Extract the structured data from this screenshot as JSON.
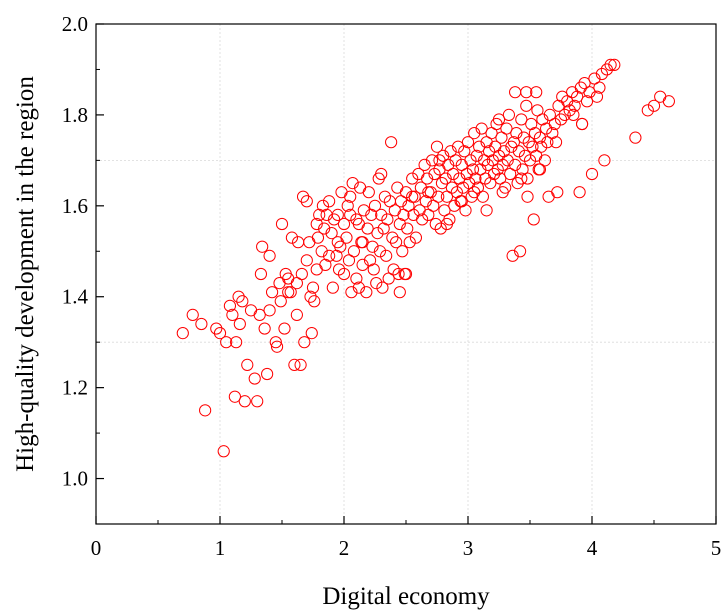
{
  "chart_data": {
    "type": "scatter",
    "title": "",
    "xlabel": "Digital economy",
    "ylabel": "High-quality development in the region",
    "xlim": [
      0,
      5
    ],
    "ylim": [
      0.9,
      2.0
    ],
    "xticks": [
      "0",
      "1",
      "2",
      "3",
      "4",
      "5"
    ],
    "yticks": [
      "1.0",
      "1.2",
      "1.4",
      "1.6",
      "1.8",
      "2.0"
    ],
    "grid": "dashed, light gray",
    "marker": "hollow circle",
    "color": "#ff0000",
    "series": [
      {
        "points": [
          [
            0.7,
            1.32
          ],
          [
            0.78,
            1.36
          ],
          [
            0.85,
            1.34
          ],
          [
            0.88,
            1.15
          ],
          [
            0.97,
            1.33
          ],
          [
            1.0,
            1.32
          ],
          [
            1.03,
            1.06
          ],
          [
            1.05,
            1.3
          ],
          [
            1.08,
            1.38
          ],
          [
            1.1,
            1.36
          ],
          [
            1.12,
            1.18
          ],
          [
            1.13,
            1.3
          ],
          [
            1.15,
            1.4
          ],
          [
            1.16,
            1.34
          ],
          [
            1.18,
            1.39
          ],
          [
            1.2,
            1.17
          ],
          [
            1.22,
            1.25
          ],
          [
            1.25,
            1.37
          ],
          [
            1.28,
            1.22
          ],
          [
            1.3,
            1.17
          ],
          [
            1.32,
            1.36
          ],
          [
            1.33,
            1.45
          ],
          [
            1.34,
            1.51
          ],
          [
            1.36,
            1.33
          ],
          [
            1.38,
            1.23
          ],
          [
            1.4,
            1.37
          ],
          [
            1.4,
            1.49
          ],
          [
            1.42,
            1.41
          ],
          [
            1.45,
            1.3
          ],
          [
            1.46,
            1.29
          ],
          [
            1.48,
            1.43
          ],
          [
            1.49,
            1.39
          ],
          [
            1.5,
            1.56
          ],
          [
            1.52,
            1.33
          ],
          [
            1.53,
            1.45
          ],
          [
            1.55,
            1.41
          ],
          [
            1.57,
            1.41
          ],
          [
            1.58,
            1.53
          ],
          [
            1.6,
            1.25
          ],
          [
            1.62,
            1.36
          ],
          [
            1.63,
            1.52
          ],
          [
            1.65,
            1.25
          ],
          [
            1.66,
            1.45
          ],
          [
            1.67,
            1.62
          ],
          [
            1.68,
            1.3
          ],
          [
            1.7,
            1.48
          ],
          [
            1.7,
            1.61
          ],
          [
            1.72,
            1.52
          ],
          [
            1.74,
            1.32
          ],
          [
            1.75,
            1.42
          ],
          [
            1.76,
            1.39
          ],
          [
            1.78,
            1.56
          ],
          [
            1.78,
            1.46
          ],
          [
            1.8,
            1.58
          ],
          [
            1.82,
            1.5
          ],
          [
            1.83,
            1.6
          ],
          [
            1.84,
            1.55
          ],
          [
            1.85,
            1.47
          ],
          [
            1.86,
            1.58
          ],
          [
            1.88,
            1.61
          ],
          [
            1.88,
            1.49
          ],
          [
            1.9,
            1.54
          ],
          [
            1.91,
            1.42
          ],
          [
            1.92,
            1.57
          ],
          [
            1.94,
            1.49
          ],
          [
            1.95,
            1.58
          ],
          [
            1.96,
            1.46
          ],
          [
            1.97,
            1.51
          ],
          [
            1.98,
            1.63
          ],
          [
            2.0,
            1.56
          ],
          [
            2.0,
            1.45
          ],
          [
            2.02,
            1.53
          ],
          [
            2.03,
            1.6
          ],
          [
            2.04,
            1.48
          ],
          [
            2.05,
            1.62
          ],
          [
            2.06,
            1.41
          ],
          [
            2.07,
            1.65
          ],
          [
            2.08,
            1.5
          ],
          [
            2.1,
            1.57
          ],
          [
            2.1,
            1.44
          ],
          [
            2.12,
            1.56
          ],
          [
            2.13,
            1.64
          ],
          [
            2.14,
            1.52
          ],
          [
            2.15,
            1.47
          ],
          [
            2.16,
            1.59
          ],
          [
            2.18,
            1.41
          ],
          [
            2.19,
            1.55
          ],
          [
            2.2,
            1.63
          ],
          [
            2.21,
            1.48
          ],
          [
            2.22,
            1.58
          ],
          [
            2.23,
            1.51
          ],
          [
            2.24,
            1.46
          ],
          [
            2.25,
            1.6
          ],
          [
            2.26,
            1.43
          ],
          [
            2.27,
            1.54
          ],
          [
            2.28,
            1.66
          ],
          [
            2.29,
            1.5
          ],
          [
            2.3,
            1.58
          ],
          [
            2.31,
            1.42
          ],
          [
            2.32,
            1.55
          ],
          [
            2.33,
            1.62
          ],
          [
            2.34,
            1.49
          ],
          [
            2.35,
            1.57
          ],
          [
            2.36,
            1.44
          ],
          [
            2.37,
            1.61
          ],
          [
            2.38,
            1.74
          ],
          [
            2.39,
            1.53
          ],
          [
            2.4,
            1.46
          ],
          [
            2.41,
            1.59
          ],
          [
            2.42,
            1.52
          ],
          [
            2.43,
            1.64
          ],
          [
            2.44,
            1.45
          ],
          [
            2.45,
            1.56
          ],
          [
            2.46,
            1.61
          ],
          [
            2.47,
            1.5
          ],
          [
            2.48,
            1.58
          ],
          [
            2.49,
            1.45
          ],
          [
            2.5,
            1.63
          ],
          [
            2.51,
            1.55
          ],
          [
            2.52,
            1.6
          ],
          [
            2.53,
            1.52
          ],
          [
            2.55,
            1.66
          ],
          [
            2.56,
            1.58
          ],
          [
            2.57,
            1.62
          ],
          [
            2.58,
            1.53
          ],
          [
            2.6,
            1.67
          ],
          [
            2.61,
            1.59
          ],
          [
            2.62,
            1.64
          ],
          [
            2.63,
            1.57
          ],
          [
            2.65,
            1.69
          ],
          [
            2.66,
            1.61
          ],
          [
            2.67,
            1.66
          ],
          [
            2.68,
            1.58
          ],
          [
            2.7,
            1.63
          ],
          [
            2.71,
            1.7
          ],
          [
            2.72,
            1.6
          ],
          [
            2.73,
            1.67
          ],
          [
            2.74,
            1.56
          ],
          [
            2.75,
            1.73
          ],
          [
            2.76,
            1.62
          ],
          [
            2.77,
            1.68
          ],
          [
            2.78,
            1.55
          ],
          [
            2.79,
            1.65
          ],
          [
            2.8,
            1.71
          ],
          [
            2.81,
            1.59
          ],
          [
            2.82,
            1.66
          ],
          [
            2.83,
            1.62
          ],
          [
            2.84,
            1.69
          ],
          [
            2.85,
            1.57
          ],
          [
            2.86,
            1.72
          ],
          [
            2.87,
            1.64
          ],
          [
            2.88,
            1.67
          ],
          [
            2.89,
            1.6
          ],
          [
            2.9,
            1.7
          ],
          [
            2.91,
            1.63
          ],
          [
            2.92,
            1.73
          ],
          [
            2.93,
            1.66
          ],
          [
            2.94,
            1.61
          ],
          [
            2.95,
            1.69
          ],
          [
            2.96,
            1.64
          ],
          [
            2.97,
            1.72
          ],
          [
            2.98,
            1.59
          ],
          [
            2.99,
            1.67
          ],
          [
            3.0,
            1.74
          ],
          [
            3.01,
            1.65
          ],
          [
            3.02,
            1.7
          ],
          [
            3.03,
            1.62
          ],
          [
            3.04,
            1.68
          ],
          [
            3.05,
            1.76
          ],
          [
            3.06,
            1.66
          ],
          [
            3.07,
            1.71
          ],
          [
            3.08,
            1.64
          ],
          [
            3.09,
            1.73
          ],
          [
            3.1,
            1.68
          ],
          [
            3.11,
            1.77
          ],
          [
            3.12,
            1.62
          ],
          [
            3.13,
            1.7
          ],
          [
            3.14,
            1.66
          ],
          [
            3.15,
            1.74
          ],
          [
            3.16,
            1.69
          ],
          [
            3.17,
            1.72
          ],
          [
            3.18,
            1.65
          ],
          [
            3.19,
            1.76
          ],
          [
            3.2,
            1.7
          ],
          [
            3.21,
            1.67
          ],
          [
            3.22,
            1.73
          ],
          [
            3.23,
            1.78
          ],
          [
            3.24,
            1.68
          ],
          [
            3.25,
            1.71
          ],
          [
            3.26,
            1.66
          ],
          [
            3.27,
            1.75
          ],
          [
            3.28,
            1.69
          ],
          [
            3.29,
            1.72
          ],
          [
            3.3,
            1.64
          ],
          [
            3.31,
            1.77
          ],
          [
            3.32,
            1.7
          ],
          [
            3.33,
            1.8
          ],
          [
            3.34,
            1.67
          ],
          [
            3.35,
            1.73
          ],
          [
            3.36,
            1.49
          ],
          [
            3.37,
            1.74
          ],
          [
            3.38,
            1.69
          ],
          [
            3.39,
            1.76
          ],
          [
            3.4,
            1.65
          ],
          [
            3.41,
            1.72
          ],
          [
            3.42,
            1.5
          ],
          [
            3.43,
            1.79
          ],
          [
            3.44,
            1.68
          ],
          [
            3.45,
            1.75
          ],
          [
            3.46,
            1.71
          ],
          [
            3.47,
            1.82
          ],
          [
            3.48,
            1.66
          ],
          [
            3.49,
            1.74
          ],
          [
            3.5,
            1.7
          ],
          [
            3.51,
            1.78
          ],
          [
            3.52,
            1.73
          ],
          [
            3.53,
            1.57
          ],
          [
            3.54,
            1.76
          ],
          [
            3.55,
            1.71
          ],
          [
            3.56,
            1.81
          ],
          [
            3.57,
            1.68
          ],
          [
            3.58,
            1.75
          ],
          [
            3.59,
            1.73
          ],
          [
            3.6,
            1.79
          ],
          [
            3.62,
            1.7
          ],
          [
            3.63,
            1.77
          ],
          [
            3.64,
            1.74
          ],
          [
            3.65,
            1.62
          ],
          [
            3.66,
            1.8
          ],
          [
            3.68,
            1.76
          ],
          [
            3.7,
            1.78
          ],
          [
            3.72,
            1.63
          ],
          [
            3.73,
            1.82
          ],
          [
            3.75,
            1.79
          ],
          [
            3.76,
            1.84
          ],
          [
            3.78,
            1.8
          ],
          [
            3.8,
            1.83
          ],
          [
            3.82,
            1.81
          ],
          [
            3.84,
            1.85
          ],
          [
            3.86,
            1.82
          ],
          [
            3.88,
            1.84
          ],
          [
            3.9,
            1.63
          ],
          [
            3.91,
            1.86
          ],
          [
            3.92,
            1.78
          ],
          [
            3.94,
            1.87
          ],
          [
            3.96,
            1.83
          ],
          [
            3.98,
            1.85
          ],
          [
            4.0,
            1.67
          ],
          [
            4.02,
            1.88
          ],
          [
            4.04,
            1.84
          ],
          [
            4.06,
            1.86
          ],
          [
            4.08,
            1.89
          ],
          [
            4.1,
            1.7
          ],
          [
            4.12,
            1.9
          ],
          [
            4.15,
            1.91
          ],
          [
            4.18,
            1.91
          ],
          [
            4.35,
            1.75
          ],
          [
            4.45,
            1.81
          ],
          [
            4.5,
            1.82
          ],
          [
            4.55,
            1.84
          ],
          [
            4.62,
            1.83
          ],
          [
            3.25,
            1.79
          ],
          [
            3.38,
            1.85
          ],
          [
            3.47,
            1.85
          ],
          [
            3.55,
            1.85
          ],
          [
            2.3,
            1.67
          ],
          [
            2.55,
            1.62
          ],
          [
            2.05,
            1.58
          ],
          [
            1.95,
            1.52
          ],
          [
            2.68,
            1.63
          ],
          [
            3.15,
            1.59
          ],
          [
            3.28,
            1.63
          ],
          [
            3.43,
            1.66
          ],
          [
            3.48,
            1.62
          ],
          [
            3.58,
            1.68
          ],
          [
            2.83,
            1.56
          ],
          [
            2.45,
            1.41
          ],
          [
            2.5,
            1.45
          ],
          [
            1.62,
            1.43
          ],
          [
            1.73,
            1.4
          ],
          [
            1.55,
            1.44
          ],
          [
            2.15,
            1.52
          ],
          [
            2.12,
            1.42
          ],
          [
            1.79,
            1.53
          ],
          [
            3.05,
            1.63
          ],
          [
            2.95,
            1.61
          ],
          [
            3.71,
            1.74
          ],
          [
            3.85,
            1.8
          ],
          [
            3.92,
            1.78
          ],
          [
            2.77,
            1.7
          ]
        ]
      }
    ]
  }
}
